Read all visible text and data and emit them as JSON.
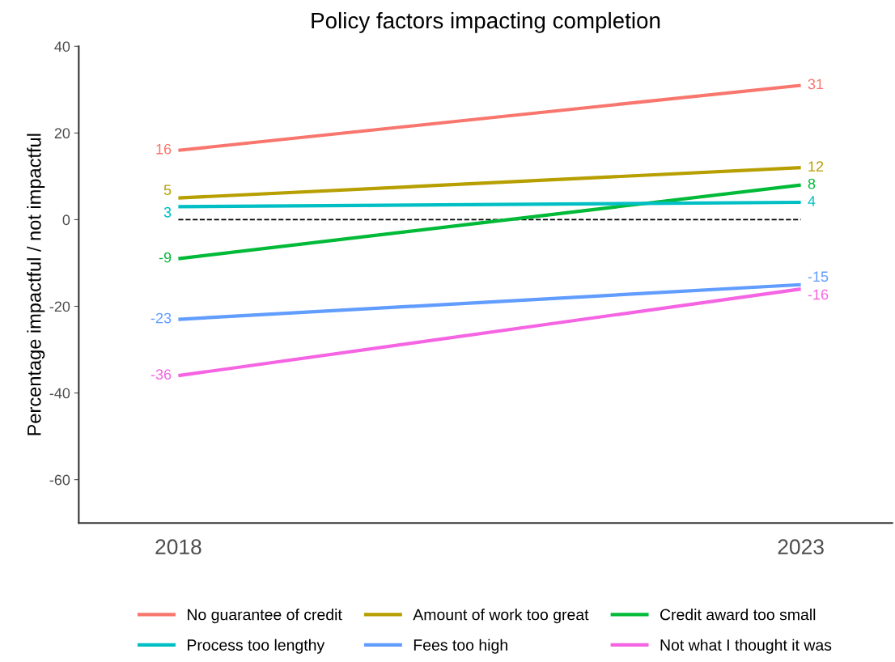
{
  "chart_data": {
    "type": "line",
    "title": "Policy factors impacting completion",
    "ylabel": "Percentage impactful / not impactful",
    "categories": [
      "2018",
      "2023"
    ],
    "series": [
      {
        "name": "No guarantee of credit",
        "color": "#f8766d",
        "values": [
          16,
          31
        ]
      },
      {
        "name": "Amount of work too great",
        "color": "#b79f00",
        "values": [
          5,
          12
        ]
      },
      {
        "name": "Credit award too small",
        "color": "#00ba38",
        "values": [
          -9,
          8
        ]
      },
      {
        "name": "Process too lengthy",
        "color": "#00bfc4",
        "values": [
          3,
          4
        ]
      },
      {
        "name": "Fees too high",
        "color": "#619cff",
        "values": [
          -23,
          -15
        ]
      },
      {
        "name": "Not what I thought it was",
        "color": "#f564e3",
        "values": [
          -36,
          -16
        ]
      }
    ],
    "ylim": [
      -70,
      40
    ],
    "yticks": [
      -60,
      -40,
      -20,
      0,
      20,
      40
    ],
    "ref_lines": [
      {
        "axis": "y",
        "value": 0,
        "color": "#000000",
        "line_style": "dashed"
      }
    ],
    "data_labels": true,
    "legend": "bottom",
    "grid": false,
    "marker": "none",
    "line_style": "solid"
  }
}
